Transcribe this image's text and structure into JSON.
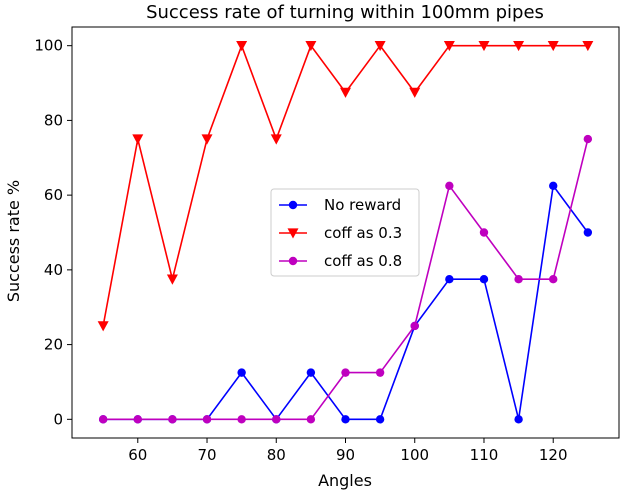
{
  "chart_data": {
    "type": "line",
    "title": "Success rate of turning within 100mm pipes",
    "xlabel": "Angles",
    "ylabel": "Success rate %",
    "x": [
      55,
      60,
      65,
      70,
      75,
      80,
      85,
      90,
      95,
      100,
      105,
      110,
      115,
      120,
      125
    ],
    "xlim": [
      50.5,
      129.5
    ],
    "ylim": [
      -5,
      105
    ],
    "xticks": [
      60,
      70,
      80,
      90,
      100,
      110,
      120
    ],
    "yticks": [
      0,
      20,
      40,
      60,
      80,
      100
    ],
    "grid": false,
    "legend_position": "center-right",
    "series": [
      {
        "name": "No reward",
        "color": "#0000ff",
        "marker": "circle",
        "values": [
          0,
          0,
          0,
          0,
          12.5,
          0,
          12.5,
          0,
          0,
          25,
          37.5,
          37.5,
          0,
          62.5,
          50
        ]
      },
      {
        "name": "coff as 0.3",
        "color": "#ff0000",
        "marker": "triangle-down",
        "values": [
          25,
          75,
          37.5,
          75,
          100,
          75,
          100,
          87.5,
          100,
          87.5,
          100,
          100,
          100,
          100,
          100
        ]
      },
      {
        "name": "coff as 0.8",
        "color": "#bf00bf",
        "marker": "circle",
        "values": [
          0,
          0,
          0,
          0,
          0,
          0,
          0,
          12.5,
          12.5,
          25,
          62.5,
          50,
          37.5,
          37.5,
          75
        ]
      }
    ]
  }
}
